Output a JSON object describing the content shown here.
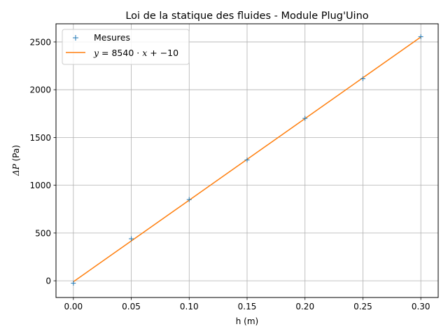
{
  "chart_data": {
    "type": "scatter",
    "title": "Loi de la statique des fluides - Module Plug'Uino",
    "xlabel": "h (m)",
    "ylabel_math": "ΔP",
    "ylabel_unit": " (Pa)",
    "xlim": [
      -0.015,
      0.315
    ],
    "ylim": [
      -175,
      2690
    ],
    "xticks": [
      0.0,
      0.05,
      0.1,
      0.15,
      0.2,
      0.25,
      0.3
    ],
    "xtick_labels": [
      "0.00",
      "0.05",
      "0.10",
      "0.15",
      "0.20",
      "0.25",
      "0.30"
    ],
    "yticks": [
      0,
      500,
      1000,
      1500,
      2000,
      2500
    ],
    "ytick_labels": [
      "0",
      "500",
      "1000",
      "1500",
      "2000",
      "2500"
    ],
    "grid": true,
    "legend_position": "top-left",
    "series": [
      {
        "name": "Mesures",
        "kind": "markers",
        "marker": "+",
        "color": "#1f77b4",
        "x": [
          0.0,
          0.05,
          0.1,
          0.15,
          0.2,
          0.25,
          0.3
        ],
        "y": [
          -25,
          440,
          850,
          1265,
          1700,
          2115,
          2555
        ]
      },
      {
        "name": "y = 8540 · x + −10",
        "kind": "line",
        "color": "#ff7f0e",
        "slope": 8540,
        "intercept": -10,
        "x": [
          0.0,
          0.3
        ],
        "y": [
          -10,
          2552
        ]
      }
    ],
    "legend": {
      "mesures_label": "Mesures",
      "fit_y": "y",
      "fit_eq": " = 8540",
      "fit_dot": " · ",
      "fit_x": "x",
      "fit_rest": " + −10"
    }
  }
}
